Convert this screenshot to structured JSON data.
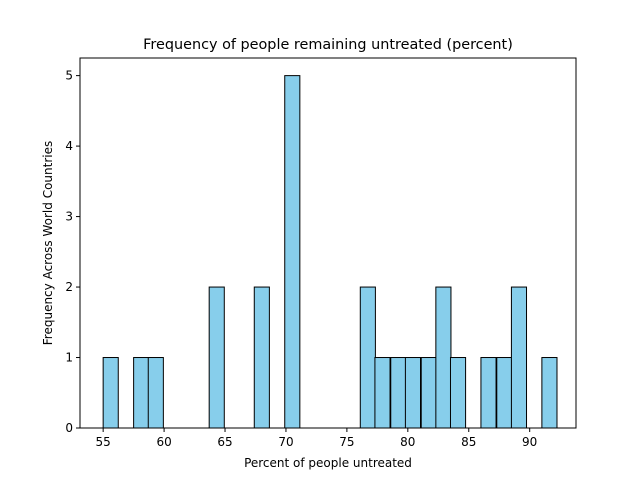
{
  "chart_data": {
    "type": "bar",
    "subtype": "histogram",
    "title": "Frequency of people remaining untreated (percent)",
    "xlabel": "Percent of people untreated",
    "ylabel": "Frequency Across World Countries",
    "xlim": [
      53.1,
      93.8
    ],
    "ylim": [
      0,
      5.25
    ],
    "xticks": [
      55,
      60,
      65,
      70,
      75,
      80,
      85,
      90
    ],
    "yticks": [
      0,
      1,
      2,
      3,
      4,
      5
    ],
    "bin_width": 1.24,
    "bins": [
      {
        "start": 55.0,
        "value": 1
      },
      {
        "start": 57.5,
        "value": 1
      },
      {
        "start": 58.7,
        "value": 1
      },
      {
        "start": 63.7,
        "value": 2
      },
      {
        "start": 67.4,
        "value": 2
      },
      {
        "start": 69.9,
        "value": 5
      },
      {
        "start": 76.1,
        "value": 2
      },
      {
        "start": 77.3,
        "value": 1
      },
      {
        "start": 78.6,
        "value": 1
      },
      {
        "start": 79.8,
        "value": 1
      },
      {
        "start": 81.1,
        "value": 1
      },
      {
        "start": 82.3,
        "value": 2
      },
      {
        "start": 83.5,
        "value": 1
      },
      {
        "start": 86.0,
        "value": 1
      },
      {
        "start": 87.3,
        "value": 1
      },
      {
        "start": 88.5,
        "value": 2
      },
      {
        "start": 91.0,
        "value": 1
      }
    ],
    "bar_color": "#87ceeb",
    "edge_color": "#000000",
    "grid": false,
    "legend": "none"
  }
}
